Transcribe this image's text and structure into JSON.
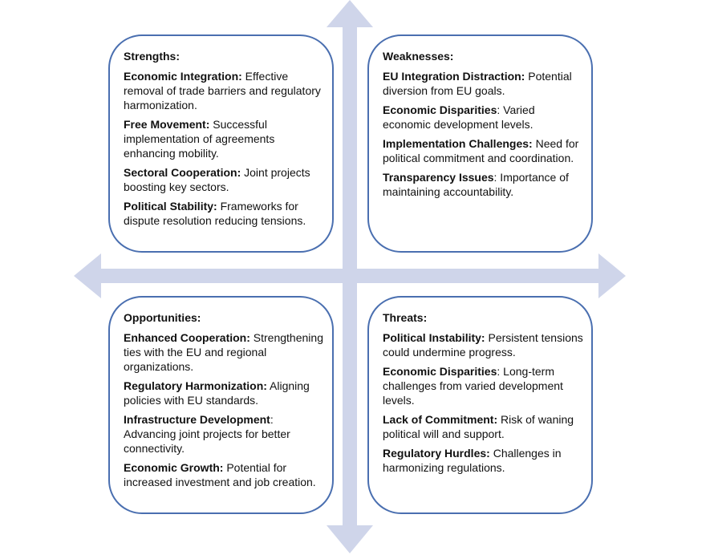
{
  "colors": {
    "arrow": "#cfd5ea",
    "border": "#4a6fb0"
  },
  "strengths": {
    "title": "Strengths:",
    "items": [
      {
        "term": "Economic Integration:",
        "text": " Effective removal of trade barriers and regulatory harmonization."
      },
      {
        "term": "Free Movement:",
        "text": " Successful implementation of agreements enhancing mobility."
      },
      {
        "term": "Sectoral Cooperation:",
        "text": " Joint projects boosting key sectors."
      },
      {
        "term": "Political Stability:",
        "text": " Frameworks for dispute resolution reducing tensions."
      }
    ]
  },
  "weaknesses": {
    "title": "Weaknesses:",
    "items": [
      {
        "term": "EU Integration Distraction:",
        "text": " Potential diversion from EU goals."
      },
      {
        "term": "Economic Disparities",
        "text": ": Varied economic development levels."
      },
      {
        "term": "Implementation Challenges:",
        "text": " Need for political commitment and coordination."
      },
      {
        "term": "Transparency Issues",
        "text": ": Importance of maintaining accountability."
      }
    ]
  },
  "opportunities": {
    "title": "Opportunities:",
    "items": [
      {
        "term": "Enhanced Cooperation:",
        "text": " Strengthening ties with the EU and regional organizations."
      },
      {
        "term": "Regulatory Harmonization:",
        "text": " Aligning policies with EU standards."
      },
      {
        "term": "Infrastructure Development",
        "text": ": Advancing joint projects for better connectivity."
      },
      {
        "term": "Economic Growth:",
        "text": " Potential for increased investment and job creation."
      }
    ]
  },
  "threats": {
    "title": "Threats:",
    "items": [
      {
        "term": "Political Instability:",
        "text": " Persistent tensions could undermine progress."
      },
      {
        "term": "Economic Disparities",
        "text": ": Long-term challenges from varied development levels."
      },
      {
        "term": "Lack of Commitment:",
        "text": " Risk of waning political will and support."
      },
      {
        "term": "Regulatory Hurdles:",
        "text": " Challenges in harmonizing regulations."
      }
    ]
  }
}
